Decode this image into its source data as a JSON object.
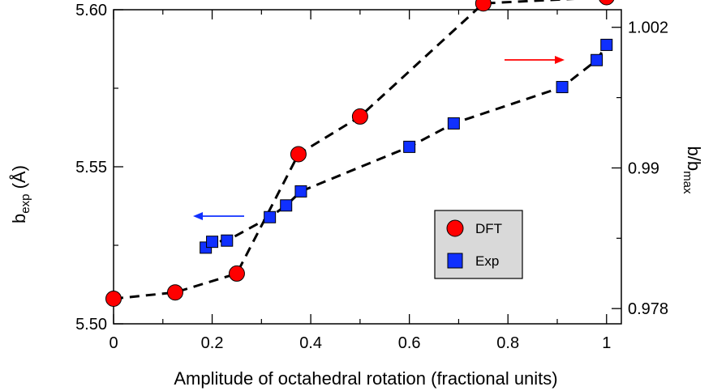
{
  "chart_data": {
    "type": "scatter",
    "xlabel": "Amplitude of octahedral rotation (fractional units)",
    "ylabel_left": {
      "main": "b",
      "sub": "exp",
      "unit": " (Å)"
    },
    "ylabel_right": {
      "main": "b/b",
      "sub": "max"
    },
    "xlim": [
      0,
      1.03
    ],
    "ylim_left": [
      5.5,
      5.6
    ],
    "ylim_right": [
      0.9767,
      1.0035
    ],
    "x_ticks": [
      {
        "value": 0,
        "label": "0"
      },
      {
        "value": 0.2,
        "label": "0.2"
      },
      {
        "value": 0.4,
        "label": "0.4"
      },
      {
        "value": 0.6,
        "label": "0.6"
      },
      {
        "value": 0.8,
        "label": "0.8"
      },
      {
        "value": 1,
        "label": "1"
      }
    ],
    "y_left_ticks": [
      {
        "value": 5.5,
        "label": "5.50"
      },
      {
        "value": 5.55,
        "label": "5.55"
      },
      {
        "value": 5.6,
        "label": "5.60"
      }
    ],
    "y_right_ticks": [
      {
        "value": 0.978,
        "label": "0.978"
      },
      {
        "value": 0.99,
        "label": "0.99"
      },
      {
        "value": 1.002,
        "label": "1.002"
      }
    ],
    "legend": {
      "position": "lower-right",
      "entries": [
        "DFT",
        "Exp"
      ]
    },
    "series": [
      {
        "name": "DFT",
        "axis": "left",
        "marker": "circle",
        "color": "#ff0000",
        "x": [
          0,
          0.125,
          0.25,
          0.375,
          0.5,
          0.75,
          1.0
        ],
        "y": [
          5.508,
          5.51,
          5.516,
          5.554,
          5.566,
          5.602,
          5.604
        ]
      },
      {
        "name": "Exp",
        "axis": "right",
        "marker": "square",
        "color": "#1030ff",
        "x": [
          0.187,
          0.2,
          0.23,
          0.317,
          0.35,
          0.38,
          0.6,
          0.69,
          0.91,
          0.98,
          1.0
        ],
        "y": [
          0.9832,
          0.9837,
          0.9838,
          0.9858,
          0.9868,
          0.988,
          0.9918,
          0.9938,
          0.9969,
          0.9992,
          1.0005
        ]
      }
    ],
    "annotations": [
      {
        "type": "arrow",
        "direction": "left",
        "color": "#1030ff",
        "points_to": "left axis"
      },
      {
        "type": "arrow",
        "direction": "right",
        "color": "#ff0000",
        "points_to": "right axis"
      }
    ]
  }
}
